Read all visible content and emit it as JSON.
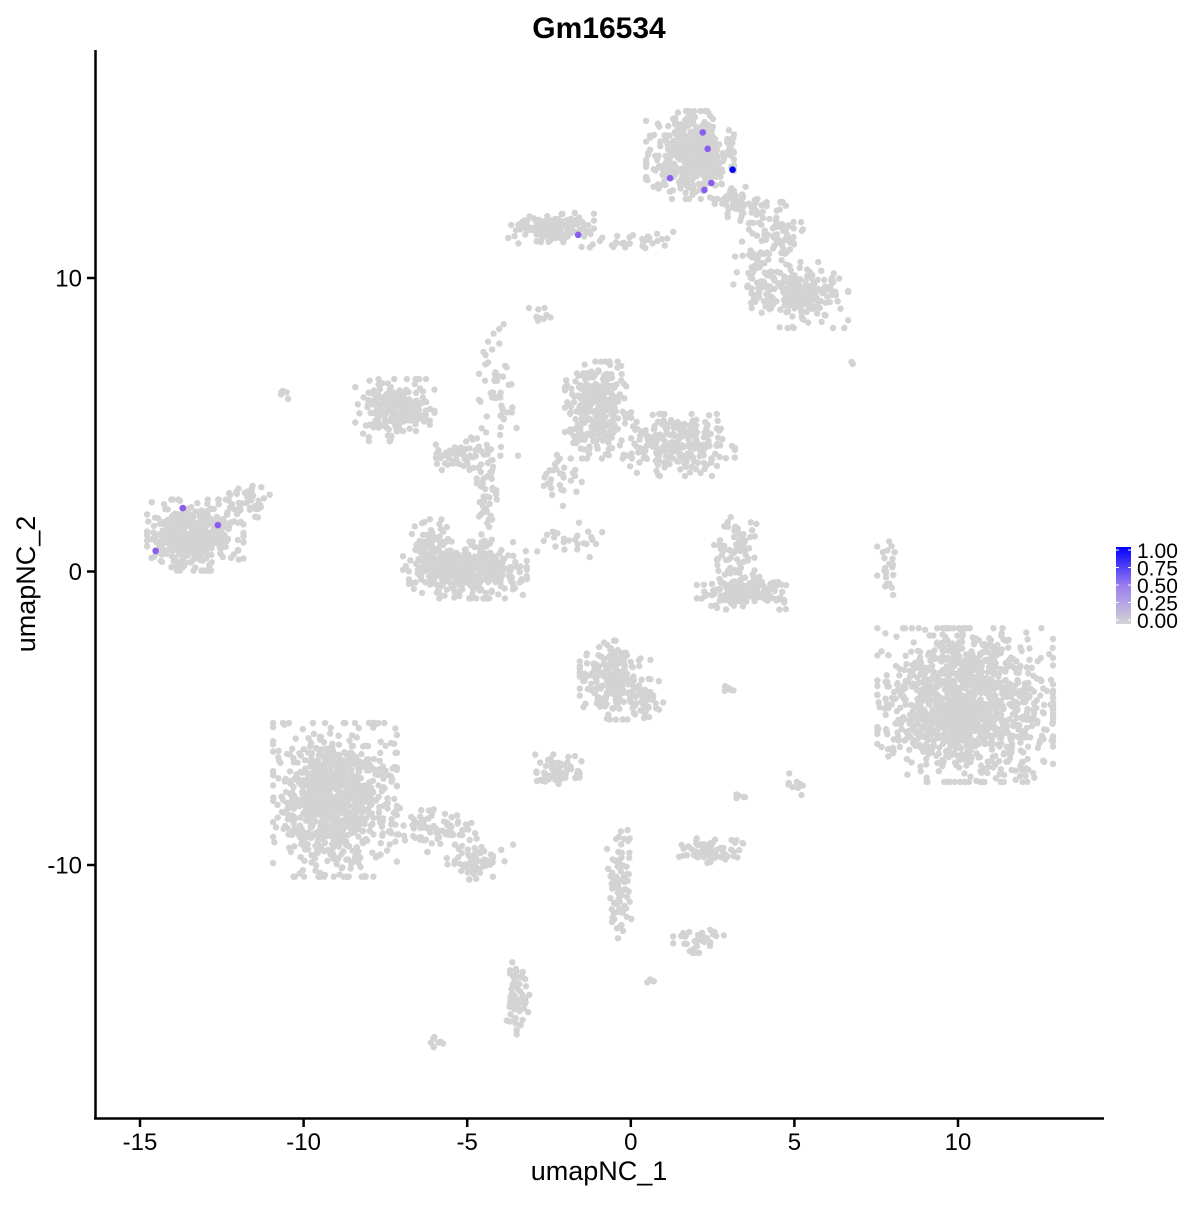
{
  "chart_data": {
    "type": "scatter",
    "title": "Gm16534",
    "xlabel": "umapNC_1",
    "ylabel": "umapNC_2",
    "xlim": [
      -16.3,
      14.4
    ],
    "ylim": [
      -18.6,
      17.8
    ],
    "x_ticks": [
      -15,
      -10,
      -5,
      0,
      5,
      10
    ],
    "y_ticks": [
      -10,
      0,
      10
    ],
    "grid": false,
    "legend": {
      "position": "right",
      "type": "colorbar",
      "ticks": [
        "1.00",
        "0.75",
        "0.50",
        "0.25",
        "0.00"
      ],
      "low_color": "#d3d3d3",
      "high_color": "#0000ff"
    },
    "background_clusters": [
      {
        "x": 1.81,
        "y": 14.19,
        "sx": 0.61,
        "sy": 0.68,
        "n": 500
      },
      {
        "x": 3.34,
        "y": 12.49,
        "sx": 0.37,
        "sy": 0.34,
        "n": 60
      },
      {
        "x": 4.41,
        "y": 11.47,
        "sx": 0.46,
        "sy": 0.51,
        "n": 80
      },
      {
        "x": 5.17,
        "y": 9.42,
        "sx": 0.67,
        "sy": 0.51,
        "n": 200
      },
      {
        "x": 3.95,
        "y": 10.27,
        "sx": 0.37,
        "sy": 0.51,
        "n": 50
      },
      {
        "x": -2.47,
        "y": 11.7,
        "sx": 0.61,
        "sy": 0.27,
        "n": 150
      },
      {
        "x": -0.33,
        "y": 11.29,
        "sx": 0.76,
        "sy": 0.17,
        "n": 30
      },
      {
        "x": -2.78,
        "y": 8.74,
        "sx": 0.15,
        "sy": 0.17,
        "n": 10
      },
      {
        "x": -13.31,
        "y": 1.24,
        "sx": 0.67,
        "sy": 0.55,
        "n": 450
      },
      {
        "x": -11.64,
        "y": 2.44,
        "sx": 0.31,
        "sy": 0.27,
        "n": 40
      },
      {
        "x": -7.21,
        "y": 5.5,
        "sx": 0.55,
        "sy": 0.48,
        "n": 220
      },
      {
        "x": -5.22,
        "y": 3.97,
        "sx": 0.46,
        "sy": 0.27,
        "n": 60
      },
      {
        "x": -5.07,
        "y": 0.05,
        "sx": 0.86,
        "sy": 0.44,
        "n": 400
      },
      {
        "x": -6.14,
        "y": 0.9,
        "sx": 0.25,
        "sy": 0.4,
        "n": 60
      },
      {
        "x": -4.38,
        "y": 2.44,
        "sx": 0.15,
        "sy": 0.85,
        "n": 50
      },
      {
        "x": -4.13,
        "y": 6.19,
        "sx": 0.31,
        "sy": 1.02,
        "n": 50
      },
      {
        "x": -1.0,
        "y": 5.5,
        "sx": 0.46,
        "sy": 0.75,
        "n": 300
      },
      {
        "x": 1.51,
        "y": 4.31,
        "sx": 0.76,
        "sy": 0.48,
        "n": 250
      },
      {
        "x": -2.16,
        "y": 3.12,
        "sx": 0.3,
        "sy": 0.4,
        "n": 30
      },
      {
        "x": -1.85,
        "y": 1.07,
        "sx": 0.46,
        "sy": 0.27,
        "n": 25
      },
      {
        "x": 3.49,
        "y": -0.7,
        "sx": 0.67,
        "sy": 0.27,
        "n": 150
      },
      {
        "x": 3.18,
        "y": 0.73,
        "sx": 0.3,
        "sy": 0.51,
        "n": 70
      },
      {
        "x": 7.86,
        "y": 0.22,
        "sx": 0.15,
        "sy": 0.51,
        "n": 25
      },
      {
        "x": 10.22,
        "y": -4.55,
        "sx": 1.22,
        "sy": 1.19,
        "n": 1300
      },
      {
        "x": -0.48,
        "y": -3.7,
        "sx": 0.49,
        "sy": 0.61,
        "n": 220
      },
      {
        "x": 0.59,
        "y": -4.38,
        "sx": 0.25,
        "sy": 0.34,
        "n": 30
      },
      {
        "x": -9.04,
        "y": -7.78,
        "sx": 0.86,
        "sy": 1.19,
        "n": 900
      },
      {
        "x": -5.98,
        "y": -8.81,
        "sx": 0.61,
        "sy": 0.34,
        "n": 80
      },
      {
        "x": -4.61,
        "y": -9.9,
        "sx": 0.46,
        "sy": 0.27,
        "n": 60
      },
      {
        "x": -2.32,
        "y": -6.83,
        "sx": 0.37,
        "sy": 0.27,
        "n": 60
      },
      {
        "x": 2.42,
        "y": -9.49,
        "sx": 0.46,
        "sy": 0.2,
        "n": 80
      },
      {
        "x": -0.33,
        "y": -10.68,
        "sx": 0.18,
        "sy": 0.85,
        "n": 80
      },
      {
        "x": 2.11,
        "y": -12.55,
        "sx": 0.37,
        "sy": 0.2,
        "n": 40
      },
      {
        "x": -3.45,
        "y": -14.43,
        "sx": 0.18,
        "sy": 0.61,
        "n": 60
      },
      {
        "x": -5.98,
        "y": -16.03,
        "sx": 0.12,
        "sy": 0.08,
        "n": 8
      },
      {
        "x": 0.59,
        "y": -13.99,
        "sx": 0.1,
        "sy": 0.08,
        "n": 5
      },
      {
        "x": 5.07,
        "y": -7.27,
        "sx": 0.15,
        "sy": 0.2,
        "n": 10
      },
      {
        "x": 3.34,
        "y": -7.61,
        "sx": 0.1,
        "sy": 0.1,
        "n": 5
      },
      {
        "x": 2.88,
        "y": -4.04,
        "sx": 0.15,
        "sy": 0.06,
        "n": 5
      },
      {
        "x": -10.57,
        "y": 6.08,
        "sx": 0.06,
        "sy": 0.1,
        "n": 5
      },
      {
        "x": 6.71,
        "y": 7.1,
        "sx": 0.04,
        "sy": 0.04,
        "n": 2
      }
    ],
    "expressing_points": [
      {
        "x": 2.2,
        "y": 14.96,
        "value": 0.5
      },
      {
        "x": 2.35,
        "y": 14.4,
        "value": 0.5
      },
      {
        "x": 1.2,
        "y": 13.4,
        "value": 0.5
      },
      {
        "x": 2.46,
        "y": 13.24,
        "value": 0.5
      },
      {
        "x": 2.25,
        "y": 13.0,
        "value": 0.5
      },
      {
        "x": -1.61,
        "y": 11.47,
        "value": 0.5
      },
      {
        "x": -13.69,
        "y": 2.16,
        "value": 0.5
      },
      {
        "x": -12.62,
        "y": 1.58,
        "value": 0.5
      },
      {
        "x": -14.52,
        "y": 0.7,
        "value": 0.5
      },
      {
        "x": 3.11,
        "y": 13.69,
        "value": 1.0
      }
    ]
  }
}
